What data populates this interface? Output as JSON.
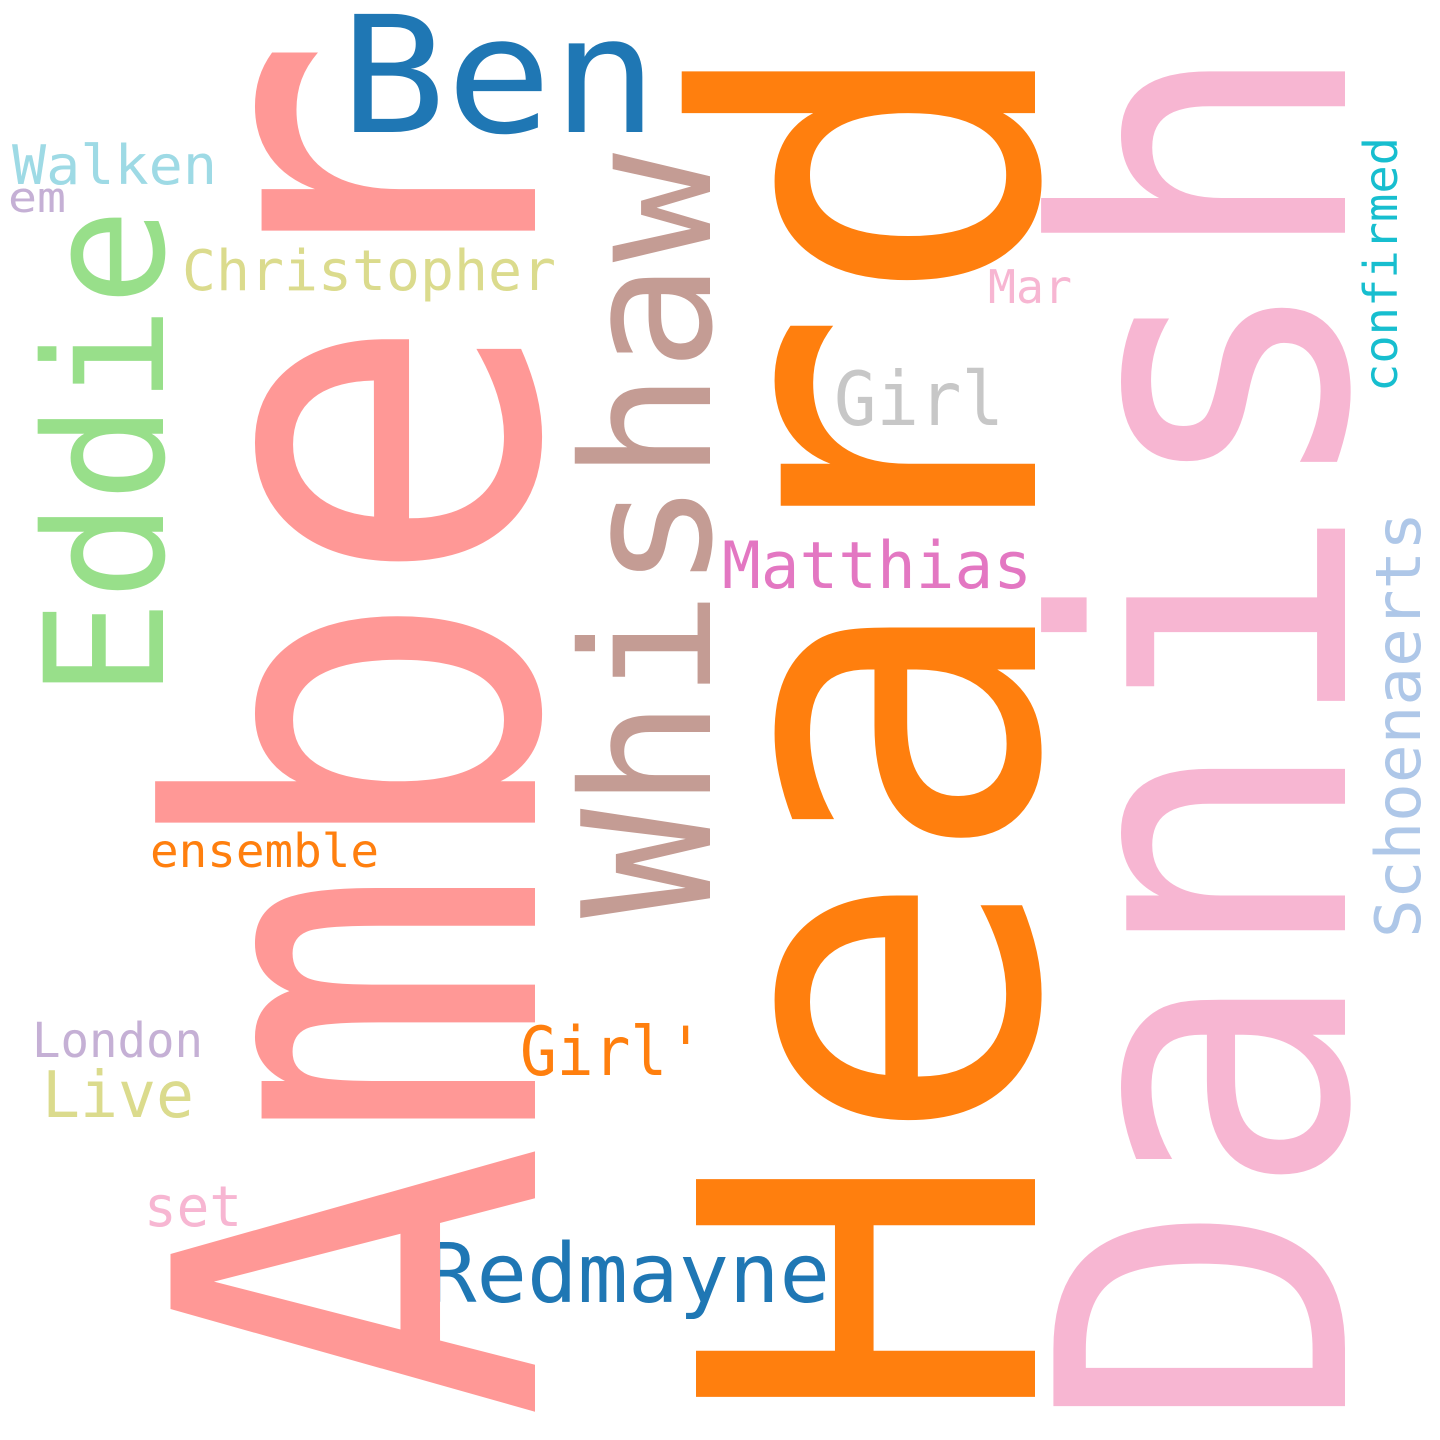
{
  "words": [
    {
      "text": "Heard",
      "color": "#ff7f0e"
    },
    {
      "text": "Amber",
      "color": "#ff9896"
    },
    {
      "text": "Danish",
      "color": "#f7b6d2"
    },
    {
      "text": "Whishaw",
      "color": "#c49c94"
    },
    {
      "text": "Ben",
      "color": "#1f77b4"
    },
    {
      "text": "Eddie",
      "color": "#98df8a"
    },
    {
      "text": "Redmayne",
      "color": "#1f77b4"
    },
    {
      "text": "Matthias",
      "color": "#e377c2"
    },
    {
      "text": "Schoenaerts",
      "color": "#aec7e8"
    },
    {
      "text": "Girl",
      "color": "#c7c7c7"
    },
    {
      "text": "Girl'",
      "color": "#ff7f0e"
    },
    {
      "text": "Christopher",
      "color": "#dbdb8d"
    },
    {
      "text": "Walken",
      "color": "#9edae5"
    },
    {
      "text": "confirmed",
      "color": "#17becf"
    },
    {
      "text": "ensemble",
      "color": "#ff7f0e"
    },
    {
      "text": "Live",
      "color": "#dbdb8d"
    },
    {
      "text": "London",
      "color": "#c5b0d5"
    },
    {
      "text": "set",
      "color": "#f7b6d2"
    },
    {
      "text": "Mar",
      "color": "#f7b6d2"
    },
    {
      "text": "em",
      "color": "#c5b0d5"
    }
  ]
}
